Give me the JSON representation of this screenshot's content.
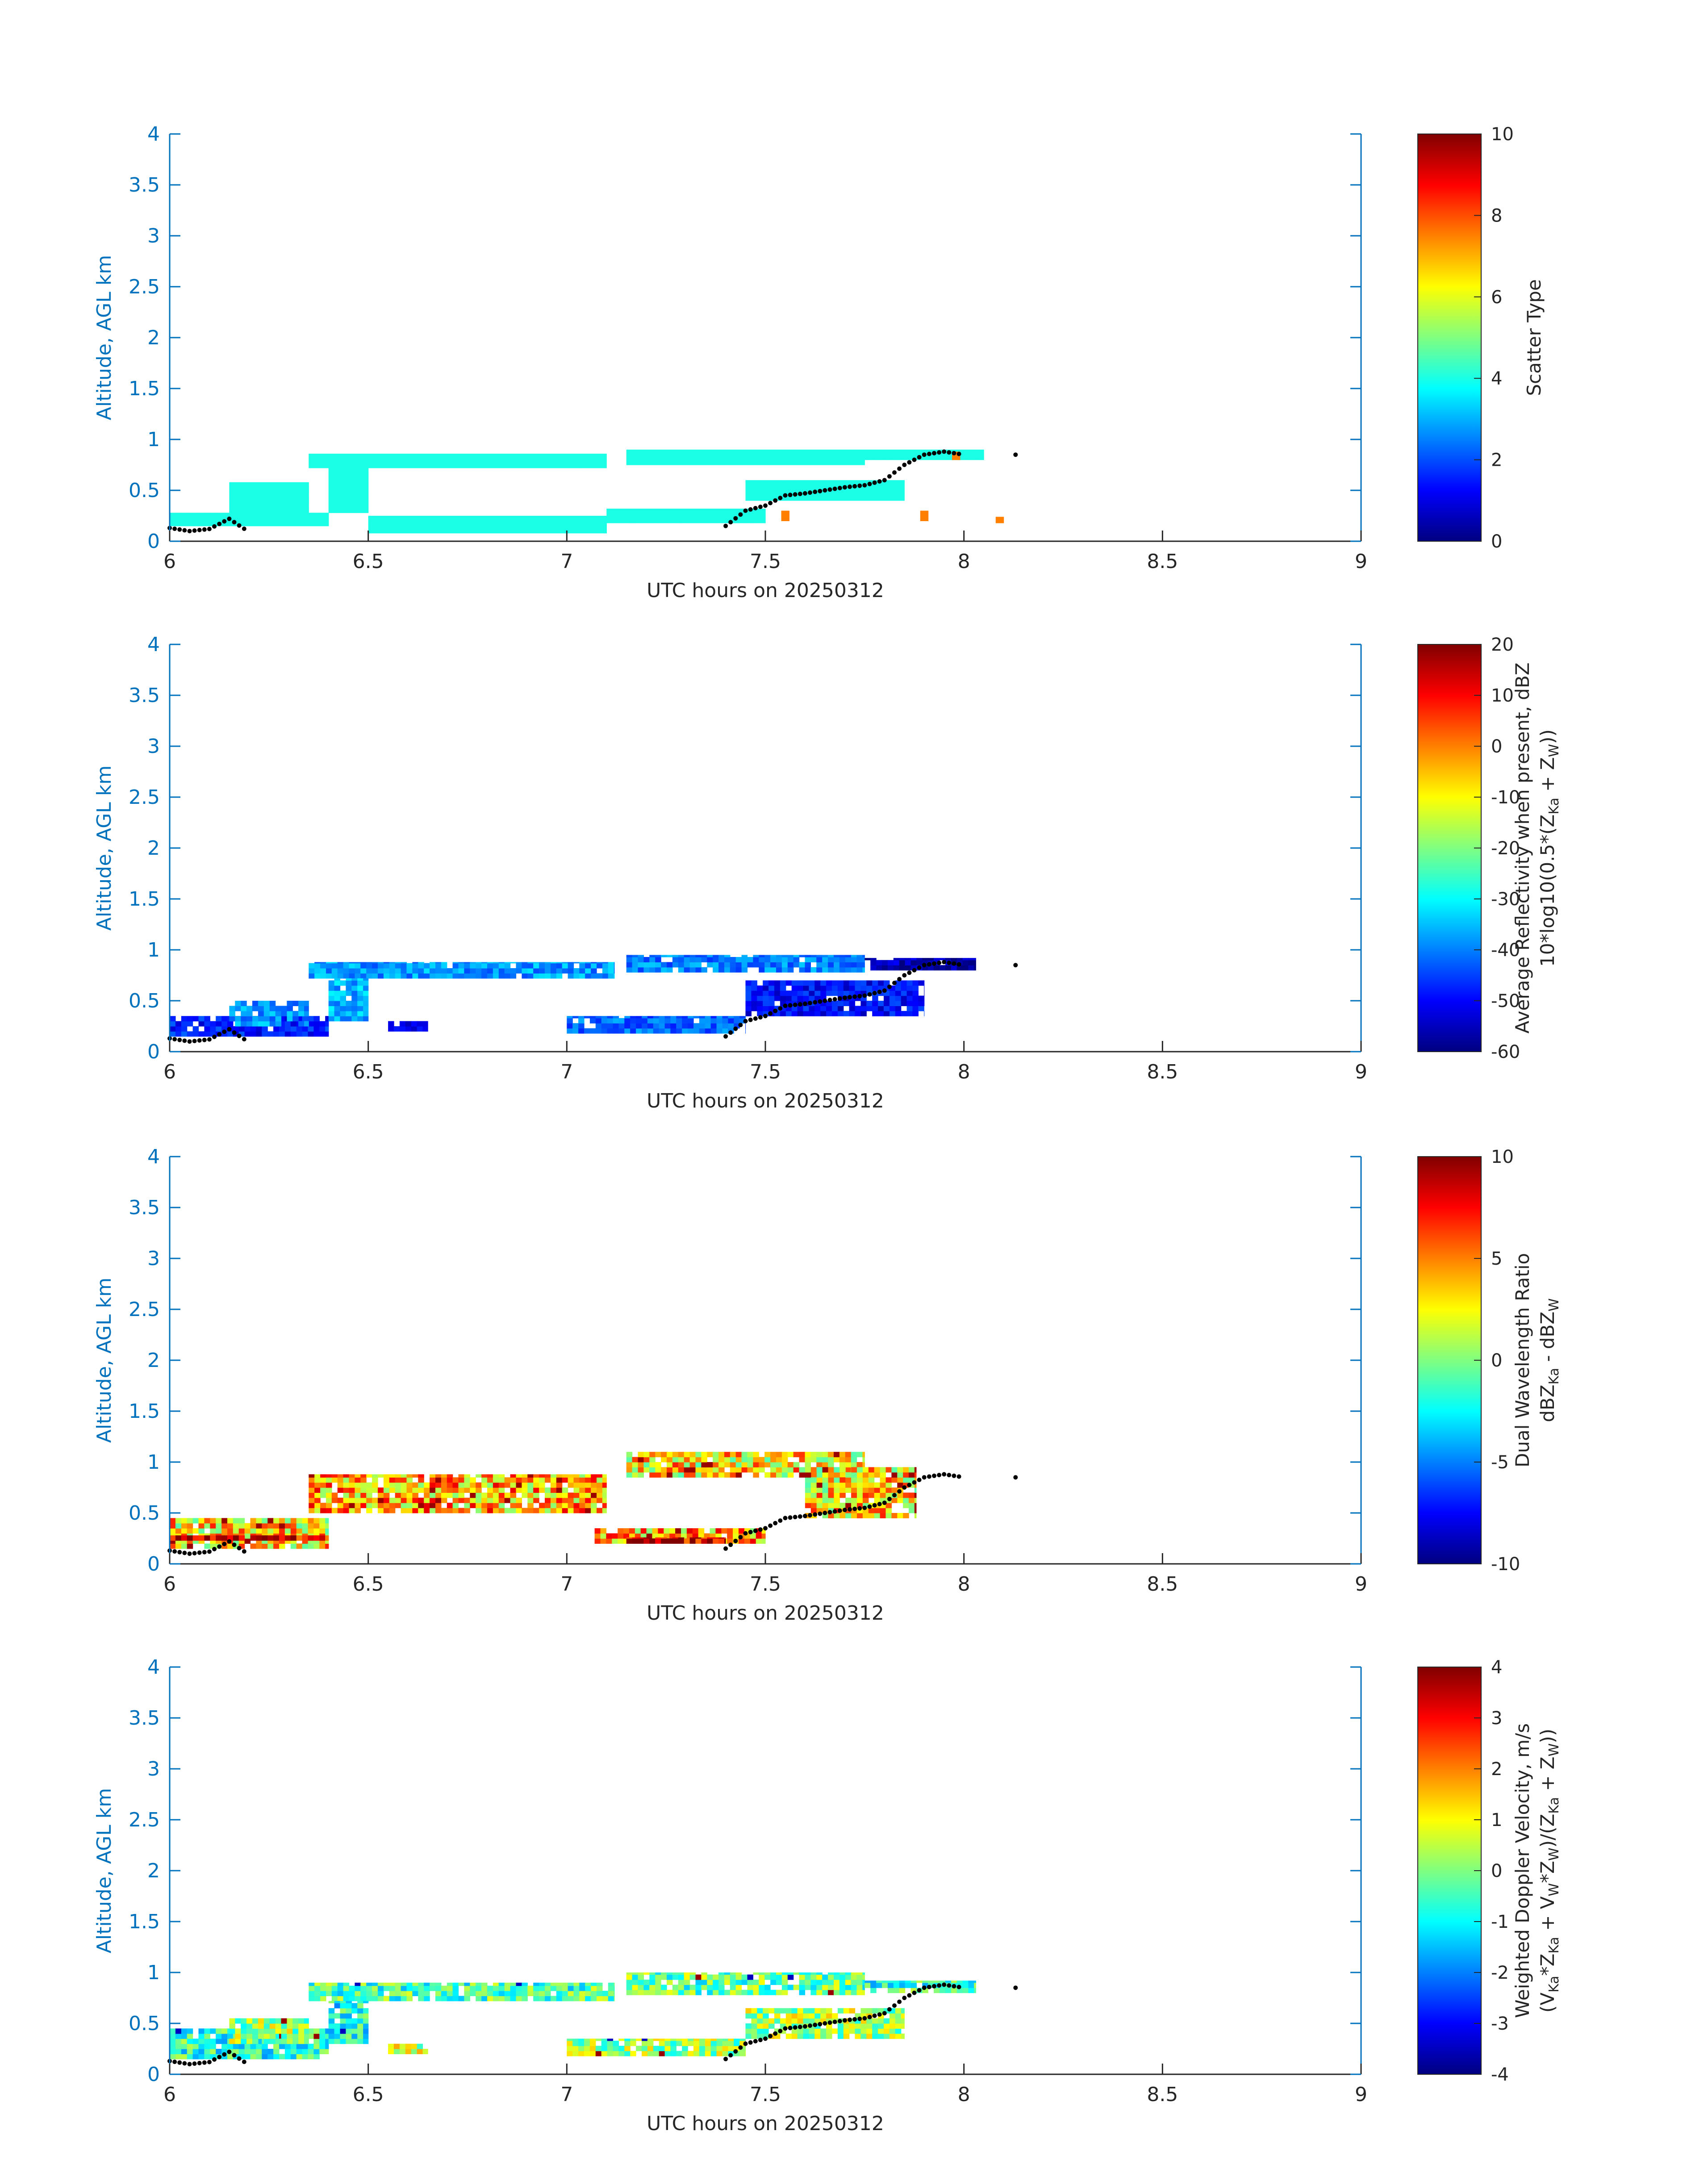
{
  "figure": {
    "panels": [
      {
        "ylabel": "Altitude, AGL km",
        "xlabel": "UTC hours on 20250312",
        "colorbar_label_lines": [
          [
            {
              "t": "Scatter Type"
            }
          ]
        ],
        "colorbar_ticks": [
          "0",
          "2",
          "4",
          "6",
          "8",
          "10"
        ]
      },
      {
        "ylabel": "Altitude, AGL km",
        "xlabel": "UTC hours on 20250312",
        "colorbar_label_lines": [
          [
            {
              "t": "Average Reflectivity when present, dBZ"
            }
          ],
          [
            {
              "t": "10*log10(0.5*(Z"
            },
            {
              "t": "Ka",
              "sub": true
            },
            {
              "t": " + Z"
            },
            {
              "t": "W",
              "sub": true
            },
            {
              "t": "))"
            }
          ]
        ],
        "colorbar_ticks": [
          "-60",
          "-50",
          "-40",
          "-30",
          "-20",
          "-10",
          "0",
          "10",
          "20"
        ]
      },
      {
        "ylabel": "Altitude, AGL km",
        "xlabel": "UTC hours on 20250312",
        "colorbar_label_lines": [
          [
            {
              "t": "Dual Wavelength Ratio"
            }
          ],
          [
            {
              "t": "dBZ"
            },
            {
              "t": "Ka",
              "sub": true
            },
            {
              "t": " - dBZ"
            },
            {
              "t": "W",
              "sub": true
            }
          ]
        ],
        "colorbar_ticks": [
          "-10",
          "-5",
          "0",
          "5",
          "10"
        ]
      },
      {
        "ylabel": "Altitude, AGL km",
        "xlabel": "UTC hours on 20250312",
        "colorbar_label_lines": [
          [
            {
              "t": "Weighted Doppler Velocity, m/s"
            }
          ],
          [
            {
              "t": "(V"
            },
            {
              "t": "Ka",
              "sub": true
            },
            {
              "t": "*Z"
            },
            {
              "t": "Ka",
              "sub": true
            },
            {
              "t": " + V"
            },
            {
              "t": "W",
              "sub": true
            },
            {
              "t": "*Z"
            },
            {
              "t": "W",
              "sub": true
            },
            {
              "t": ")/(Z"
            },
            {
              "t": "Ka",
              "sub": true
            },
            {
              "t": " + Z"
            },
            {
              "t": "W",
              "sub": true
            },
            {
              "t": "))"
            }
          ]
        ],
        "colorbar_ticks": [
          "-4",
          "-3",
          "-2",
          "-1",
          "0",
          "1",
          "2",
          "3",
          "4"
        ]
      }
    ]
  },
  "chart_data": [
    {
      "type": "heatmap",
      "title": "",
      "xlabel": "UTC hours on 20250312",
      "ylabel": "Altitude, AGL km",
      "xlim": [
        6,
        9
      ],
      "ylim": [
        0,
        4
      ],
      "xticks": [
        "6",
        "6.5",
        "7",
        "7.5",
        "8",
        "8.5",
        "9"
      ],
      "yticks": [
        "0",
        "0.5",
        "1",
        "1.5",
        "2",
        "2.5",
        "3",
        "3.5",
        "4"
      ],
      "colorbar": {
        "label": "Scatter Type",
        "range": [
          0,
          10
        ],
        "colormap": "jet"
      },
      "layers": [
        {
          "x": [
            6.0,
            6.4
          ],
          "y": [
            0.15,
            0.28
          ],
          "value": 4
        },
        {
          "x": [
            6.15,
            6.35
          ],
          "y": [
            0.28,
            0.58
          ],
          "value": 4
        },
        {
          "x": [
            6.35,
            7.1
          ],
          "y": [
            0.72,
            0.86
          ],
          "value": 4
        },
        {
          "x": [
            6.4,
            6.5
          ],
          "y": [
            0.28,
            0.72
          ],
          "value": 4
        },
        {
          "x": [
            6.5,
            7.1
          ],
          "y": [
            0.08,
            0.25
          ],
          "value": 4
        },
        {
          "x": [
            7.15,
            7.75
          ],
          "y": [
            0.75,
            0.9
          ],
          "value": 4
        },
        {
          "x": [
            7.1,
            7.5
          ],
          "y": [
            0.18,
            0.32
          ],
          "value": 4
        },
        {
          "x": [
            7.45,
            7.85
          ],
          "y": [
            0.4,
            0.6
          ],
          "value": 4
        },
        {
          "x": [
            7.75,
            8.05
          ],
          "y": [
            0.8,
            0.9
          ],
          "value": 4
        },
        {
          "x": [
            7.54,
            7.56
          ],
          "y": [
            0.2,
            0.3
          ],
          "value": 7.5
        },
        {
          "x": [
            7.89,
            7.91
          ],
          "y": [
            0.2,
            0.3
          ],
          "value": 7.5
        },
        {
          "x": [
            7.97,
            7.99
          ],
          "y": [
            0.8,
            0.88
          ],
          "value": 7.5
        },
        {
          "x": [
            8.08,
            8.1
          ],
          "y": [
            0.18,
            0.24
          ],
          "value": 7.5
        }
      ],
      "cloud_base_points": {
        "x": [
          6.0,
          6.05,
          6.1,
          6.15,
          6.2,
          6.3,
          6.4,
          6.5,
          6.6,
          6.7,
          6.8,
          6.9,
          7.0,
          7.1,
          7.2,
          7.3,
          7.4,
          7.45,
          7.5,
          7.55,
          7.6,
          7.65,
          7.7,
          7.75,
          7.8,
          7.85,
          7.9,
          7.95,
          8.0,
          8.13
        ],
        "y": [
          0.13,
          0.1,
          0.12,
          0.22,
          0.09,
          0.08,
          0.07,
          0.07,
          0.12,
          0.11,
          0.05,
          0.06,
          0.08,
          0.09,
          0.1,
          0.12,
          0.15,
          0.3,
          0.35,
          0.45,
          0.47,
          0.5,
          0.53,
          0.55,
          0.6,
          0.75,
          0.85,
          0.88,
          0.85,
          0.85
        ]
      }
    },
    {
      "type": "heatmap",
      "title": "",
      "xlabel": "UTC hours on 20250312",
      "ylabel": "Altitude, AGL km",
      "xlim": [
        6,
        9
      ],
      "ylim": [
        0,
        4
      ],
      "xticks": [
        "6",
        "6.5",
        "7",
        "7.5",
        "8",
        "8.5",
        "9"
      ],
      "yticks": [
        "0",
        "0.5",
        "1",
        "1.5",
        "2",
        "2.5",
        "3",
        "3.5",
        "4"
      ],
      "colorbar": {
        "label": "Average Reflectivity when present, dBZ",
        "range": [
          -60,
          20
        ],
        "colormap": "jet"
      },
      "layers": [
        {
          "x": [
            6.0,
            6.4
          ],
          "y": [
            0.15,
            0.35
          ],
          "value": -48
        },
        {
          "x": [
            6.15,
            6.35
          ],
          "y": [
            0.25,
            0.5
          ],
          "value": -38
        },
        {
          "x": [
            6.35,
            7.12
          ],
          "y": [
            0.72,
            0.88
          ],
          "value": -38
        },
        {
          "x": [
            6.4,
            6.5
          ],
          "y": [
            0.3,
            0.72
          ],
          "value": -36
        },
        {
          "x": [
            6.55,
            6.65
          ],
          "y": [
            0.2,
            0.3
          ],
          "value": -52
        },
        {
          "x": [
            7.0,
            7.45
          ],
          "y": [
            0.18,
            0.35
          ],
          "value": -42
        },
        {
          "x": [
            7.15,
            7.75
          ],
          "y": [
            0.78,
            0.95
          ],
          "value": -40
        },
        {
          "x": [
            7.45,
            7.9
          ],
          "y": [
            0.35,
            0.7
          ],
          "value": -50
        },
        {
          "x": [
            7.75,
            8.03
          ],
          "y": [
            0.8,
            0.92
          ],
          "value": -56
        }
      ],
      "cloud_base_points": {
        "x": [
          6.0,
          6.05,
          6.1,
          6.15,
          6.2,
          6.3,
          6.4,
          6.5,
          6.6,
          6.7,
          6.8,
          6.9,
          7.0,
          7.1,
          7.2,
          7.3,
          7.4,
          7.45,
          7.5,
          7.55,
          7.6,
          7.65,
          7.7,
          7.75,
          7.8,
          7.85,
          7.9,
          7.95,
          8.0,
          8.13
        ],
        "y": [
          0.13,
          0.1,
          0.12,
          0.22,
          0.09,
          0.08,
          0.07,
          0.07,
          0.12,
          0.11,
          0.05,
          0.06,
          0.08,
          0.09,
          0.1,
          0.12,
          0.15,
          0.3,
          0.35,
          0.45,
          0.47,
          0.5,
          0.53,
          0.55,
          0.6,
          0.75,
          0.85,
          0.88,
          0.85,
          0.85
        ]
      }
    },
    {
      "type": "heatmap",
      "title": "",
      "xlabel": "UTC hours on 20250312",
      "ylabel": "Altitude, AGL km",
      "xlim": [
        6,
        9
      ],
      "ylim": [
        0,
        4
      ],
      "xticks": [
        "6",
        "6.5",
        "7",
        "7.5",
        "8",
        "8.5",
        "9"
      ],
      "yticks": [
        "0",
        "0.5",
        "1",
        "1.5",
        "2",
        "2.5",
        "3",
        "3.5",
        "4"
      ],
      "colorbar": {
        "label": "Dual Wavelength Ratio",
        "range": [
          -10,
          10
        ],
        "colormap": "jet"
      },
      "layers": [
        {
          "x": [
            6.0,
            6.4
          ],
          "y": [
            0.15,
            0.45
          ],
          "value": 3
        },
        {
          "x": [
            6.35,
            7.1
          ],
          "y": [
            0.5,
            0.88
          ],
          "value": 4
        },
        {
          "x": [
            7.15,
            7.75
          ],
          "y": [
            0.85,
            1.1
          ],
          "value": 3
        },
        {
          "x": [
            7.07,
            7.5
          ],
          "y": [
            0.2,
            0.35
          ],
          "value": 4
        },
        {
          "x": [
            7.6,
            7.88
          ],
          "y": [
            0.45,
            0.95
          ],
          "value": 3
        },
        {
          "x": [
            6.0,
            6.4
          ],
          "y": [
            0.23,
            0.28
          ],
          "value": 9
        },
        {
          "x": [
            7.15,
            7.4
          ],
          "y": [
            0.2,
            0.26
          ],
          "value": 9
        }
      ],
      "cloud_base_points": {
        "x": [
          6.0,
          6.05,
          6.1,
          6.15,
          6.2,
          6.3,
          6.4,
          6.5,
          6.6,
          6.7,
          6.8,
          6.9,
          7.0,
          7.1,
          7.2,
          7.3,
          7.4,
          7.45,
          7.5,
          7.55,
          7.6,
          7.65,
          7.7,
          7.75,
          7.8,
          7.85,
          7.9,
          7.95,
          8.0,
          8.13
        ],
        "y": [
          0.13,
          0.1,
          0.12,
          0.22,
          0.09,
          0.08,
          0.07,
          0.07,
          0.12,
          0.11,
          0.05,
          0.06,
          0.08,
          0.09,
          0.1,
          0.12,
          0.15,
          0.3,
          0.35,
          0.45,
          0.47,
          0.5,
          0.53,
          0.55,
          0.6,
          0.75,
          0.85,
          0.88,
          0.85,
          0.85
        ]
      }
    },
    {
      "type": "heatmap",
      "title": "",
      "xlabel": "UTC hours on 20250312",
      "ylabel": "Altitude, AGL km",
      "xlim": [
        6,
        9
      ],
      "ylim": [
        0,
        4
      ],
      "xticks": [
        "6",
        "6.5",
        "7",
        "7.5",
        "8",
        "8.5",
        "9"
      ],
      "yticks": [
        "0",
        "0.5",
        "1",
        "1.5",
        "2",
        "2.5",
        "3",
        "3.5",
        "4"
      ],
      "colorbar": {
        "label": "Weighted Doppler Velocity, m/s",
        "range": [
          -4,
          4
        ],
        "colormap": "jet"
      },
      "layers": [
        {
          "x": [
            6.0,
            6.4
          ],
          "y": [
            0.15,
            0.45
          ],
          "value": -0.7
        },
        {
          "x": [
            6.15,
            6.35
          ],
          "y": [
            0.3,
            0.55
          ],
          "value": 0.2
        },
        {
          "x": [
            6.35,
            7.12
          ],
          "y": [
            0.72,
            0.9
          ],
          "value": -0.4
        },
        {
          "x": [
            6.4,
            6.5
          ],
          "y": [
            0.3,
            0.72
          ],
          "value": -0.9
        },
        {
          "x": [
            6.55,
            6.65
          ],
          "y": [
            0.2,
            0.3
          ],
          "value": 0.5
        },
        {
          "x": [
            7.0,
            7.45
          ],
          "y": [
            0.18,
            0.35
          ],
          "value": 0.2
        },
        {
          "x": [
            7.15,
            7.75
          ],
          "y": [
            0.78,
            1.0
          ],
          "value": -0.2
        },
        {
          "x": [
            7.45,
            7.85
          ],
          "y": [
            0.35,
            0.65
          ],
          "value": 0.3
        },
        {
          "x": [
            7.75,
            8.03
          ],
          "y": [
            0.8,
            0.92
          ],
          "value": -0.6
        }
      ],
      "cloud_base_points": {
        "x": [
          6.0,
          6.05,
          6.1,
          6.15,
          6.2,
          6.3,
          6.4,
          6.5,
          6.6,
          6.7,
          6.8,
          6.9,
          7.0,
          7.1,
          7.2,
          7.3,
          7.4,
          7.45,
          7.5,
          7.55,
          7.6,
          7.65,
          7.7,
          7.75,
          7.8,
          7.85,
          7.9,
          7.95,
          8.0,
          8.13
        ],
        "y": [
          0.13,
          0.1,
          0.12,
          0.22,
          0.09,
          0.08,
          0.07,
          0.07,
          0.12,
          0.11,
          0.05,
          0.06,
          0.08,
          0.09,
          0.1,
          0.12,
          0.15,
          0.3,
          0.35,
          0.45,
          0.47,
          0.5,
          0.53,
          0.55,
          0.6,
          0.75,
          0.85,
          0.88,
          0.85,
          0.85
        ]
      }
    }
  ]
}
